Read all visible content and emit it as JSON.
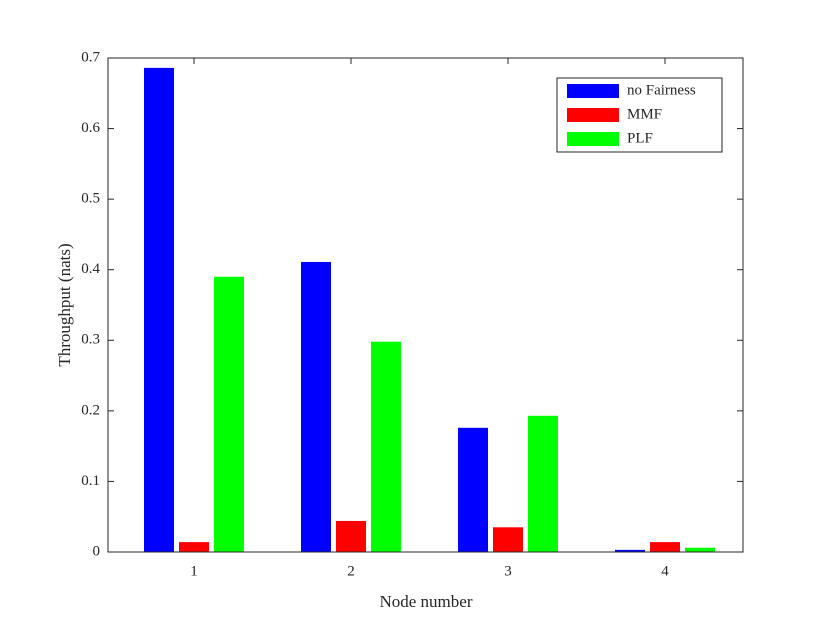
{
  "chart_data": {
    "type": "bar",
    "x_label": "Node number",
    "y_label": "Throughput (nats)",
    "categories": [
      "1",
      "2",
      "3",
      "4"
    ],
    "series": [
      {
        "name": "no Fairness",
        "color": "#0000ff",
        "values": [
          0.686,
          0.411,
          0.176,
          0.003
        ]
      },
      {
        "name": "MMF",
        "color": "#ff0000",
        "values": [
          0.014,
          0.044,
          0.035,
          0.014
        ]
      },
      {
        "name": "PLF",
        "color": "#00ff00",
        "values": [
          0.39,
          0.298,
          0.193,
          0.006
        ]
      }
    ],
    "ylim": [
      0,
      0.7
    ],
    "yticks": [
      0,
      0.1,
      0.2,
      0.3,
      0.4,
      0.5,
      0.6,
      0.7
    ],
    "legend": "top-right"
  }
}
